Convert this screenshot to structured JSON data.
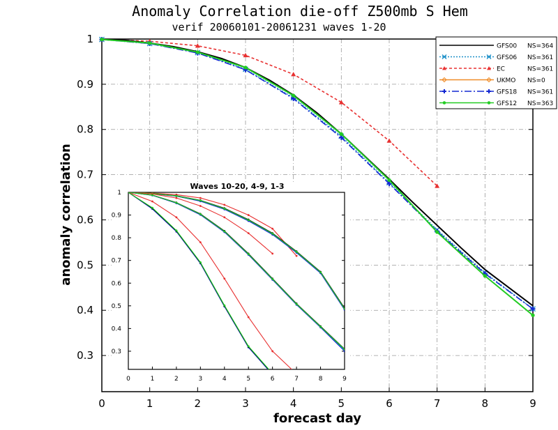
{
  "colors": {
    "GFS00": "#000000",
    "GFS06": "#1e90c8",
    "EC": "#e83030",
    "UKMO": "#f08c28",
    "GFS18": "#1428d2",
    "GFS12": "#22cc22"
  },
  "chart_data": [
    {
      "type": "line",
      "title": "Anomaly Correlation die-off   Z500mb S Hem",
      "subtitle": "verif 20060101-20061231 waves 1-20",
      "xlabel": "forecast day",
      "ylabel": "anomaly correlation",
      "xlim": [
        0,
        9
      ],
      "ylim": [
        0.22,
        1.0
      ],
      "xticks": [
        "0",
        "1",
        "2",
        "3",
        "4",
        "5",
        "6",
        "7",
        "8",
        "9"
      ],
      "yticks": [
        "0.3",
        "0.4",
        "0.5",
        "0.6",
        "0.7",
        "0.8",
        "0.9",
        "1"
      ],
      "grid": true,
      "legend_position": "top-right",
      "series": [
        {
          "name": "GFS00",
          "ns": "NS=364",
          "marker": "none",
          "dash": "solid",
          "x": [
            0,
            0.5,
            1,
            1.5,
            2,
            2.5,
            3,
            3.5,
            4,
            4.5,
            5,
            5.5,
            6,
            6.5,
            7,
            7.5,
            8,
            8.5,
            9
          ],
          "y": [
            0.999,
            0.997,
            0.991,
            0.983,
            0.972,
            0.957,
            0.937,
            0.909,
            0.876,
            0.836,
            0.79,
            0.74,
            0.69,
            0.638,
            0.588,
            0.538,
            0.49,
            0.45,
            0.41
          ]
        },
        {
          "name": "GFS06",
          "ns": "NS=361",
          "marker": "x",
          "dash": "dot",
          "x": [
            0,
            1,
            2,
            3,
            4,
            5,
            6,
            7,
            8,
            9
          ],
          "y": [
            0.999,
            0.99,
            0.97,
            0.933,
            0.87,
            0.785,
            0.682,
            0.578,
            0.483,
            0.403
          ]
        },
        {
          "name": "EC",
          "ns": "NS=361",
          "marker": "triangle",
          "dash": "dash",
          "x": [
            0,
            1,
            2,
            3,
            4,
            5,
            6,
            7
          ],
          "y": [
            0.999,
            0.995,
            0.985,
            0.964,
            0.922,
            0.86,
            0.775,
            0.675
          ]
        },
        {
          "name": "UKMO",
          "ns": "NS=0",
          "marker": "diamond",
          "dash": "solid",
          "x": [],
          "y": []
        },
        {
          "name": "GFS18",
          "ns": "NS=361",
          "marker": "plus",
          "dash": "dashdot",
          "x": [
            0,
            1,
            2,
            3,
            4,
            5,
            6,
            7,
            8,
            9
          ],
          "y": [
            0.999,
            0.99,
            0.969,
            0.932,
            0.868,
            0.782,
            0.68,
            0.575,
            0.481,
            0.403
          ]
        },
        {
          "name": "GFS12",
          "ns": "NS=363",
          "marker": "circle",
          "dash": "solid",
          "x": [
            0,
            1,
            2,
            3,
            4,
            5,
            6,
            7,
            8,
            9
          ],
          "y": [
            0.999,
            0.991,
            0.971,
            0.937,
            0.875,
            0.79,
            0.688,
            0.573,
            0.476,
            0.389
          ]
        }
      ]
    },
    {
      "type": "line",
      "title": "Waves 10-20, 4-9, 1-3",
      "xlim": [
        0,
        9
      ],
      "ylim": [
        0.22,
        1.0
      ],
      "xticks": [
        "0",
        "1",
        "2",
        "3",
        "4",
        "5",
        "6",
        "7",
        "8",
        "9"
      ],
      "yticks": [
        "0.3",
        "0.4",
        "0.5",
        "0.6",
        "0.7",
        "0.8",
        "0.9",
        "1"
      ],
      "groups": [
        {
          "waves": "1-3",
          "series": [
            {
              "name": "GFS00",
              "x": [
                0,
                1,
                2,
                3,
                4,
                5,
                6,
                7,
                8,
                9
              ],
              "y": [
                1.0,
                0.995,
                0.985,
                0.965,
                0.93,
                0.88,
                0.82,
                0.74,
                0.65,
                0.49
              ]
            },
            {
              "name": "GFS06",
              "x": [
                0,
                1,
                2,
                3,
                4,
                5,
                6,
                7,
                8,
                9
              ],
              "y": [
                1.0,
                0.994,
                0.983,
                0.962,
                0.926,
                0.875,
                0.815,
                0.735,
                0.645,
                0.485
              ]
            },
            {
              "name": "EC",
              "x": [
                0,
                1,
                2,
                3,
                4,
                5,
                6,
                7
              ],
              "y": [
                1.0,
                0.997,
                0.99,
                0.975,
                0.945,
                0.9,
                0.84,
                0.72
              ]
            },
            {
              "name": "GFS18",
              "x": [
                0,
                1,
                2,
                3,
                4,
                5,
                6,
                7,
                8,
                9
              ],
              "y": [
                1.0,
                0.994,
                0.983,
                0.961,
                0.925,
                0.874,
                0.814,
                0.734,
                0.644,
                0.483
              ]
            },
            {
              "name": "GFS12",
              "x": [
                0,
                1,
                2,
                3,
                4,
                5,
                6,
                7,
                8,
                9
              ],
              "y": [
                1.0,
                0.995,
                0.984,
                0.964,
                0.928,
                0.878,
                0.818,
                0.738,
                0.648,
                0.487
              ]
            }
          ]
        },
        {
          "waves": "4-9",
          "series": [
            {
              "name": "GFS00",
              "x": [
                0,
                1,
                2,
                3,
                4,
                5,
                6,
                7,
                8,
                9
              ],
              "y": [
                1.0,
                0.988,
                0.955,
                0.905,
                0.83,
                0.73,
                0.62,
                0.51,
                0.41,
                0.31
              ]
            },
            {
              "name": "GFS06",
              "x": [
                0,
                1,
                2,
                3,
                4,
                5,
                6,
                7,
                8,
                9
              ],
              "y": [
                1.0,
                0.987,
                0.953,
                0.902,
                0.826,
                0.726,
                0.616,
                0.506,
                0.406,
                0.305
              ]
            },
            {
              "name": "EC",
              "x": [
                0,
                1,
                2,
                3,
                4,
                5,
                6
              ],
              "y": [
                1.0,
                0.993,
                0.975,
                0.94,
                0.89,
                0.82,
                0.73
              ]
            },
            {
              "name": "GFS18",
              "x": [
                0,
                1,
                2,
                3,
                4,
                5,
                6,
                7,
                8,
                9
              ],
              "y": [
                1.0,
                0.987,
                0.952,
                0.901,
                0.825,
                0.725,
                0.615,
                0.505,
                0.405,
                0.3
              ]
            },
            {
              "name": "GFS12",
              "x": [
                0,
                1,
                2,
                3,
                4,
                5,
                6,
                7,
                8,
                9
              ],
              "y": [
                1.0,
                0.988,
                0.954,
                0.904,
                0.828,
                0.728,
                0.618,
                0.508,
                0.408,
                0.308
              ]
            }
          ]
        },
        {
          "waves": "10-20",
          "series": [
            {
              "name": "GFS00",
              "x": [
                0,
                1,
                2,
                3,
                4,
                5,
                6
              ],
              "y": [
                1.0,
                0.93,
                0.83,
                0.69,
                0.5,
                0.32,
                0.2
              ]
            },
            {
              "name": "GFS06",
              "x": [
                0,
                1,
                2,
                3,
                4,
                5,
                6
              ],
              "y": [
                1.0,
                0.928,
                0.828,
                0.688,
                0.498,
                0.318,
                0.198
              ]
            },
            {
              "name": "EC",
              "x": [
                0,
                1,
                2,
                3,
                4,
                5,
                6,
                7
              ],
              "y": [
                1.0,
                0.96,
                0.89,
                0.78,
                0.62,
                0.45,
                0.3,
                0.2
              ]
            },
            {
              "name": "GFS18",
              "x": [
                0,
                1,
                2,
                3,
                4,
                5,
                6
              ],
              "y": [
                1.0,
                0.927,
                0.827,
                0.687,
                0.497,
                0.317,
                0.197
              ]
            },
            {
              "name": "GFS12",
              "x": [
                0,
                1,
                2,
                3,
                4,
                5,
                6
              ],
              "y": [
                1.0,
                0.932,
                0.832,
                0.692,
                0.502,
                0.322,
                0.202
              ]
            }
          ]
        }
      ]
    }
  ]
}
